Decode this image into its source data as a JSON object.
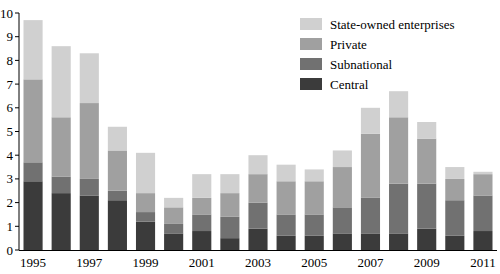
{
  "chart_data": {
    "type": "bar",
    "stacked": true,
    "grid": false,
    "legend": "upper right",
    "categories": [
      "1995",
      null,
      "1997",
      null,
      "1999",
      null,
      "2001",
      null,
      "2003",
      null,
      "2005",
      null,
      "2007",
      null,
      "2009",
      null,
      "2011"
    ],
    "ylim": [
      0,
      10
    ],
    "yticks": [
      0,
      1,
      2,
      3,
      4,
      5,
      6,
      7,
      8,
      9,
      10
    ],
    "series": [
      {
        "name": "Central",
        "color": "#3b3b3b",
        "values": [
          2.9,
          2.4,
          2.3,
          2.1,
          1.2,
          0.7,
          0.8,
          0.5,
          0.9,
          0.6,
          0.6,
          0.7,
          0.7,
          0.7,
          0.9,
          0.6,
          0.8
        ]
      },
      {
        "name": "Subnational",
        "color": "#717171",
        "values": [
          0.8,
          0.7,
          0.7,
          0.4,
          0.4,
          0.4,
          0.7,
          0.9,
          1.1,
          0.9,
          0.9,
          1.1,
          1.5,
          2.1,
          1.9,
          1.5,
          1.5
        ]
      },
      {
        "name": "Private",
        "color": "#a0a0a0",
        "values": [
          3.5,
          2.5,
          3.2,
          1.7,
          0.8,
          0.7,
          0.7,
          1.0,
          1.2,
          1.4,
          1.4,
          1.7,
          2.7,
          2.8,
          1.9,
          0.9,
          0.9
        ]
      },
      {
        "name": "State-owned enterprises",
        "color": "#d0d0d0",
        "values": [
          2.5,
          3.0,
          2.1,
          1.0,
          1.7,
          0.4,
          1.0,
          0.8,
          0.8,
          0.7,
          0.5,
          0.7,
          1.1,
          1.1,
          0.7,
          0.5,
          0.1
        ]
      }
    ]
  }
}
